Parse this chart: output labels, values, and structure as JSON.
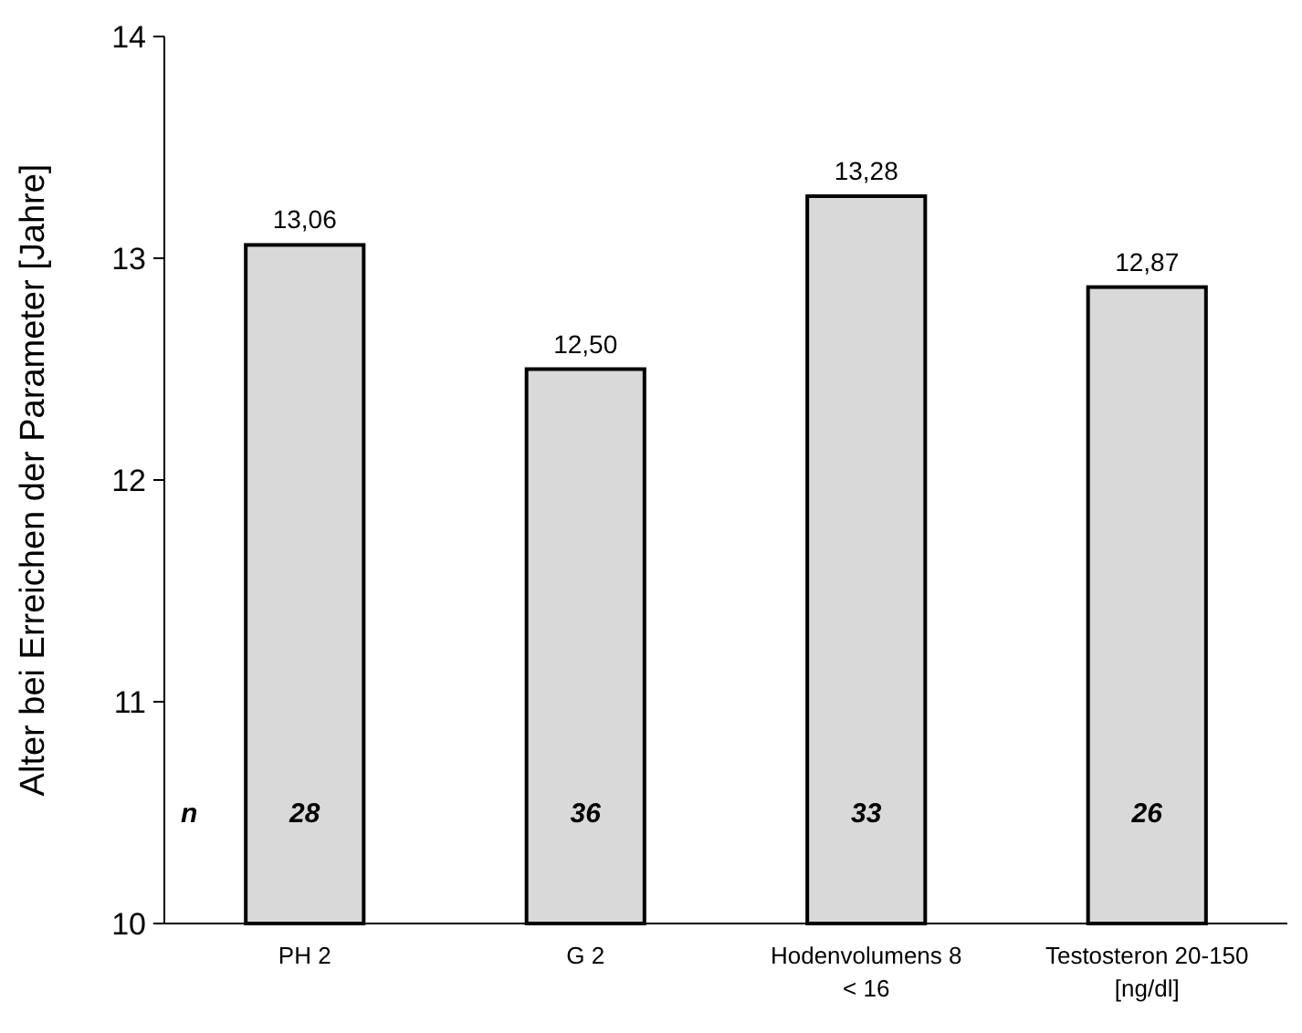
{
  "chart_data": {
    "type": "bar",
    "ylabel": "Alter bei Erreichen der Parameter [Jahre]",
    "categories": [
      "PH 2",
      "G 2",
      "Hodenvolumens 8\n< 16",
      "Testosteron 20-150\n[ng/dl]"
    ],
    "values": [
      13.06,
      12.5,
      13.28,
      12.87
    ],
    "value_labels": [
      "13,06",
      "12,50",
      "13,28",
      "12,87"
    ],
    "color": "#d9d9d9",
    "ylim": [
      10,
      14
    ],
    "yticks": [
      10,
      11,
      12,
      13,
      14
    ],
    "grid": false,
    "annotations": [
      "n",
      "28",
      "36",
      "33",
      "26"
    ]
  }
}
